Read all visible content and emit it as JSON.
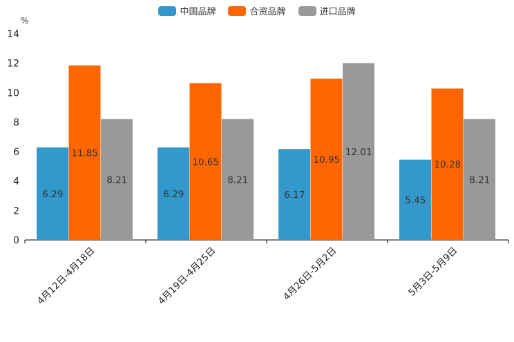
{
  "chart_data": {
    "type": "bar",
    "title": "",
    "ylabel": "%",
    "xlabel": "",
    "ylim": [
      0,
      14
    ],
    "yticks": [
      0,
      2,
      4,
      6,
      8,
      10,
      12,
      14
    ],
    "legend_position": "top-center",
    "categories": [
      "4月12日-4月18日",
      "4月19日-4月25日",
      "4月26日-5月2日",
      "5月3日-5月9日"
    ],
    "series": [
      {
        "name": "中国品牌",
        "color": "#3399cc",
        "values": [
          6.29,
          6.29,
          6.17,
          5.45
        ]
      },
      {
        "name": "合资品牌",
        "color": "#ff6600",
        "values": [
          11.85,
          10.65,
          10.95,
          10.28
        ]
      },
      {
        "name": "进口品牌",
        "color": "#999999",
        "values": [
          8.21,
          8.21,
          12.01,
          8.21
        ]
      }
    ]
  }
}
